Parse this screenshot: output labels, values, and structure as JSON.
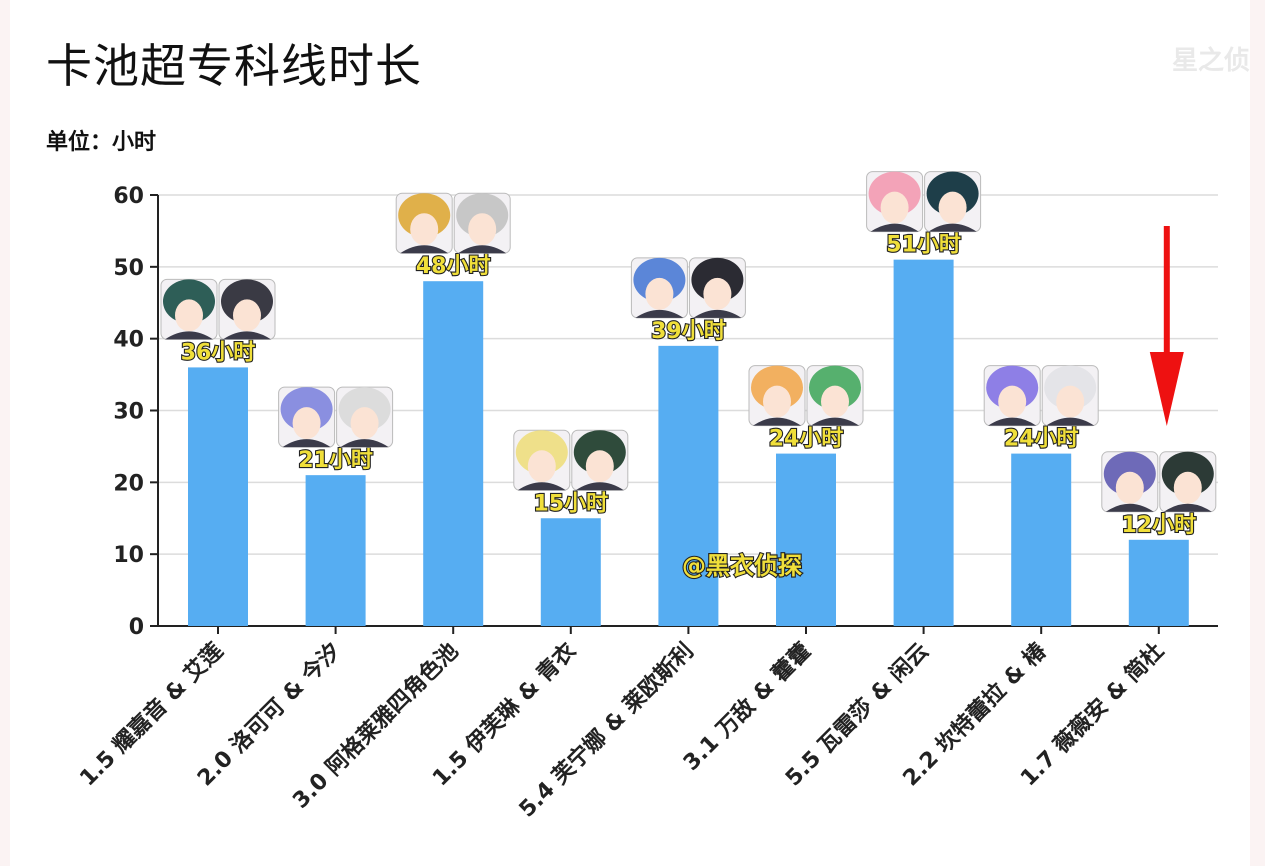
{
  "header": {
    "title": "卡池超专科线时长",
    "subtitle": "单位：小时",
    "corner_mark": "星之侦"
  },
  "chart_data": {
    "type": "bar",
    "title": "卡池超专科线时长",
    "ylabel": "单位：小时",
    "ylim": [
      0,
      60
    ],
    "yticks": [
      0,
      10,
      20,
      30,
      40,
      50,
      60
    ],
    "grid": true,
    "categories": [
      "1.5 耀嘉音 & 艾莲",
      "2.0 洛可可 & 今汐",
      "3.0 阿格莱雅四角色池",
      "1.5 伊芙琳 & 青衣",
      "5.4 芙宁娜 & 莱欧斯利",
      "3.1 万敌 & 藿藿",
      "5.5 瓦雷莎 & 闲云",
      "2.2 坎特蕾拉 & 椿",
      "1.7 薇薇安 & 简杜"
    ],
    "values": [
      36,
      21,
      48,
      15,
      39,
      24,
      51,
      24,
      12
    ],
    "data_labels": [
      "36小时",
      "21小时",
      "48小时",
      "15小时",
      "39小时",
      "24小时",
      "51小时",
      "24小时",
      "12小时"
    ],
    "bar_color": "#56adf2",
    "watermark": "@黑衣侦探",
    "annotation": {
      "type": "arrow",
      "color": "#ee1111",
      "target_category": "1.7 薇薇安 & 简杜"
    },
    "portrait_hair_colors": [
      [
        "#2e5e57",
        "#3a3a44"
      ],
      [
        "#8a8fe0",
        "#dcdcdc"
      ],
      [
        "#e0b04a",
        "#c7c7c7"
      ],
      [
        "#efe08a",
        "#2f4b3b"
      ],
      [
        "#5b86d8",
        "#2b2b33"
      ],
      [
        "#f2b060",
        "#56b06e"
      ],
      [
        "#f3a3b8",
        "#1e3e49"
      ],
      [
        "#8e7fe6",
        "#e4e4e8"
      ],
      [
        "#6e6ab8",
        "#2c3a36"
      ]
    ]
  }
}
